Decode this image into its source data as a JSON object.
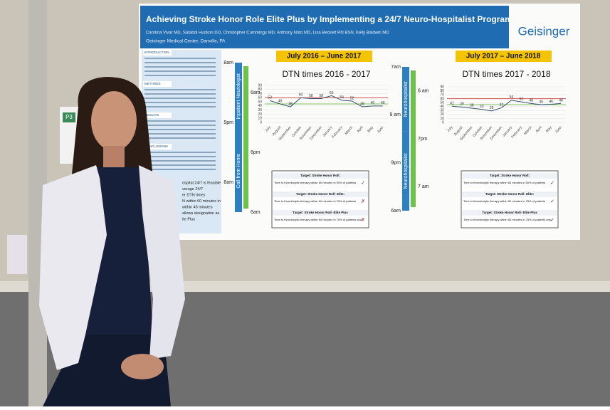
{
  "sign": "P3",
  "poster": {
    "title": "Achieving Stroke Honor Role Elite Plus by Implementing a 24/7 Neuro-Hospitalist Program",
    "authors": "Carolina Vivar MD, Satabdi Hudson DO, Christopher Cummings MD, Anthony Noto MD, Lisa Beckett RN BSN, Kelly Baldwin MD",
    "affiliation": "Geisinger Medical Center, Danville, PA",
    "logo": "Geisinger",
    "sections": [
      "INTRODUCTION",
      "METHODS",
      "RESULTS",
      "CONCLUSIONS"
    ],
    "conclusion_fragments": [
      "ospital 24/7 is feasible",
      "verage 24/7",
      "er DTN times",
      "N within 60 minutes in",
      "within 45 minutes",
      "allows designation as",
      "ite Plus"
    ],
    "schedules": [
      {
        "bars": [
          "Inpatient Neurologist",
          "Call from Home"
        ],
        "times": [
          "8am",
          "6am",
          "5pm",
          "6pm",
          "8am",
          "6am"
        ]
      },
      {
        "bars": [
          "Neurohospitalist",
          "Neurohospitalist"
        ],
        "times": [
          "7am",
          "6 am",
          "9 am",
          "7pm",
          "9pm",
          "7 am",
          "6am"
        ]
      }
    ],
    "periods": [
      "July 2016 – June 2017",
      "July 2017 – June 2018"
    ],
    "tables": [
      [
        [
          "Target: Stroke Honor Roll:",
          "Time to thrombolytic therapy within 60 minutes in 50% of patients",
          "✓"
        ],
        [
          "Target: Stroke Honor Roll- Elite:",
          "Time to thrombolytic therapy within 60 minutes in 75% of patients",
          "✗"
        ],
        [
          "Target: Stroke Honor Roll- Elite Plus",
          "Time to thrombolytic therapy within 60 minutes in 75% of patients and",
          "✗"
        ]
      ],
      [
        [
          "Target: Stroke Honor Roll:",
          "Time to thrombolytic therapy within 60 minutes in 50% of patients",
          "✓"
        ],
        [
          "Target: Stroke Honor Roll- Elite:",
          "Time to thrombolytic therapy within 60 minutes in 75% of patients",
          "✓"
        ],
        [
          "Target: Stroke Honor Roll- Elite Plus",
          "Time to thrombolytic therapy within 60 minutes in 75% of patients and",
          "✓"
        ]
      ]
    ]
  },
  "chart_data": [
    {
      "type": "line",
      "title": "DTN times 2016 - 2017",
      "categories": [
        "July",
        "August",
        "September",
        "October",
        "November",
        "December",
        "January",
        "February",
        "March",
        "April",
        "May",
        "June"
      ],
      "values": [
        53,
        45,
        38,
        60,
        58,
        58,
        65,
        54,
        52,
        38,
        40,
        40
      ],
      "color": "#34506e",
      "reference_lines": [
        {
          "value": 60,
          "color": "#d05050"
        },
        {
          "value": 45,
          "color": "#7fbf5f"
        }
      ],
      "ylim": [
        0,
        90
      ],
      "yticks": [
        0,
        10,
        20,
        30,
        40,
        50,
        60,
        70,
        80,
        90
      ],
      "grid": true
    },
    {
      "type": "line",
      "title": "DTN times 2017 - 2018",
      "categories": [
        "July",
        "August",
        "September",
        "October",
        "November",
        "December",
        "January",
        "February",
        "March",
        "April",
        "May",
        "June"
      ],
      "values": [
        41,
        39,
        36,
        33,
        29,
        37,
        56,
        52,
        48,
        45,
        46,
        48
      ],
      "color": "#34506e",
      "reference_lines": [
        {
          "value": 60,
          "color": "#d05050"
        },
        {
          "value": 45,
          "color": "#7fbf5f"
        }
      ],
      "ylim": [
        0,
        90
      ],
      "yticks": [
        0,
        10,
        20,
        30,
        40,
        50,
        60,
        70,
        80,
        90
      ],
      "grid": true
    }
  ]
}
